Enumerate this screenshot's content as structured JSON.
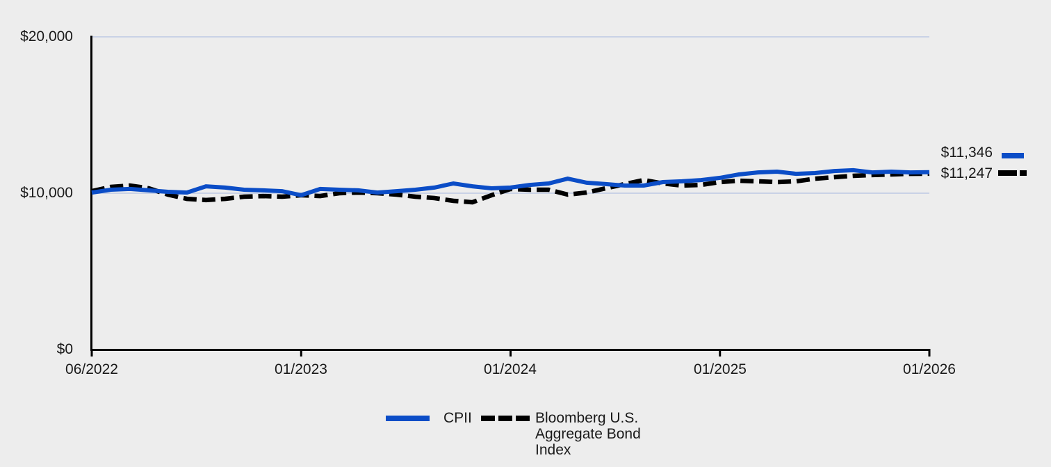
{
  "chart_data": {
    "type": "line",
    "title": "",
    "xlabel": "",
    "ylabel": "",
    "ylim": [
      0,
      20000
    ],
    "y_ticks": [
      20000,
      10000,
      0
    ],
    "y_tick_labels": [
      "$20,000",
      "$10,000",
      "$0"
    ],
    "x_tick_labels": [
      "06/2022",
      "01/2023",
      "01/2024",
      "01/2025",
      "01/2026"
    ],
    "x_range": [
      "06/2022",
      "01/2026"
    ],
    "grid": "horizontal gridlines at $10,000 and $20,000",
    "gridline_color": "#c9d2e6",
    "axis_color": "#000000",
    "legend_position": "bottom-center",
    "series": [
      {
        "name": "CPII",
        "color": "#0b4dc7",
        "style": "solid",
        "end_label": "$11,346",
        "end_value": 11346,
        "start_value": 10000,
        "values": [
          10040,
          10220,
          10270,
          10180,
          10090,
          10040,
          10440,
          10360,
          10220,
          10180,
          10130,
          9870,
          10270,
          10220,
          10180,
          10040,
          10130,
          10220,
          10360,
          10620,
          10440,
          10310,
          10360,
          10530,
          10620,
          10930,
          10670,
          10580,
          10490,
          10490,
          10710,
          10760,
          10840,
          10980,
          11200,
          11330,
          11380,
          11240,
          11290,
          11420,
          11470,
          11330,
          11380,
          11330,
          11346
        ]
      },
      {
        "name": "Bloomberg U.S. Aggregate Bond Index",
        "color": "#000000",
        "style": "dashed",
        "end_label": "$11,247",
        "end_value": 11247,
        "start_value": 10000,
        "values": [
          10130,
          10400,
          10490,
          10310,
          9910,
          9640,
          9560,
          9640,
          9780,
          9820,
          9780,
          9870,
          9820,
          10000,
          10040,
          10000,
          9910,
          9780,
          9690,
          9510,
          9420,
          9870,
          10270,
          10220,
          10220,
          9910,
          10040,
          10310,
          10580,
          10840,
          10620,
          10490,
          10530,
          10710,
          10800,
          10760,
          10710,
          10760,
          10930,
          11020,
          11110,
          11160,
          11200,
          11240,
          11247
        ]
      }
    ]
  },
  "colors": {
    "background": "#ededed",
    "text": "#1a1a1a"
  }
}
